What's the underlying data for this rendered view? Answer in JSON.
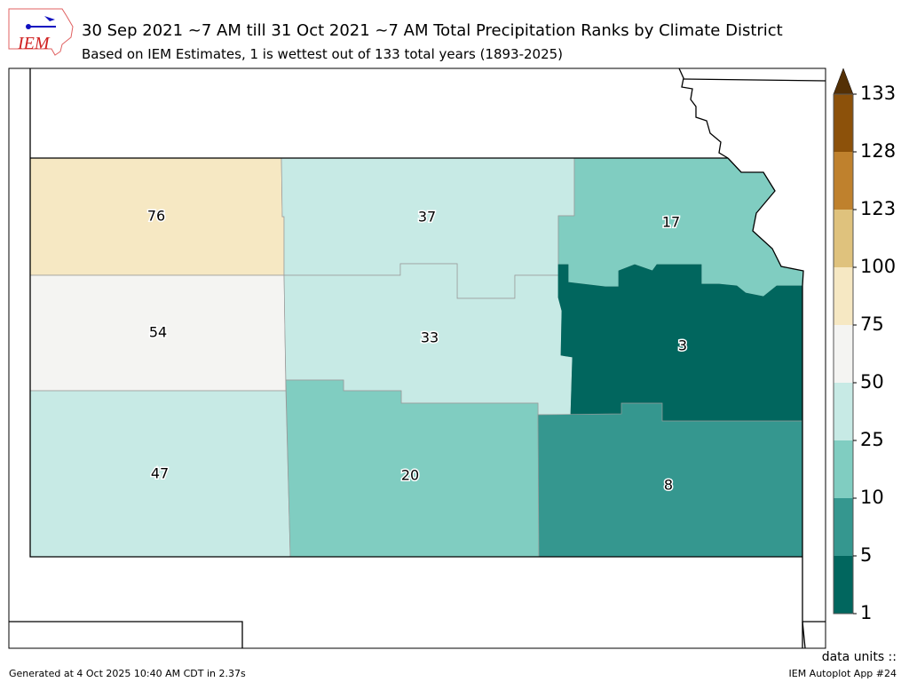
{
  "header": {
    "logo_text": "IEM",
    "title": "30 Sep 2021 ~7 AM till 31 Oct 2021 ~7 AM Total Precipitation Ranks by Climate District",
    "subtitle": "Based on IEM Estimates, 1 is wettest out of 133 total years (1893-2025)"
  },
  "districts": [
    {
      "id": "nw",
      "rank": "76",
      "color": "#f6e8c3"
    },
    {
      "id": "nc",
      "rank": "37",
      "color": "#c7eae5"
    },
    {
      "id": "ne",
      "rank": "17",
      "color": "#80cdc1"
    },
    {
      "id": "wc",
      "rank": "54",
      "color": "#f4f4f2"
    },
    {
      "id": "c",
      "rank": "33",
      "color": "#c7eae5"
    },
    {
      "id": "ec",
      "rank": "3",
      "color": "#01665e"
    },
    {
      "id": "sw",
      "rank": "47",
      "color": "#c7eae5"
    },
    {
      "id": "sc",
      "rank": "20",
      "color": "#80cdc1"
    },
    {
      "id": "se",
      "rank": "8",
      "color": "#35978f"
    }
  ],
  "colorbar": {
    "ticks": [
      "1",
      "5",
      "10",
      "25",
      "50",
      "75",
      "100",
      "123",
      "128",
      "133"
    ],
    "colors": [
      "#01665e",
      "#35978f",
      "#80cdc1",
      "#c7eae5",
      "#f4f4f2",
      "#f6e8c3",
      "#dfc27d",
      "#bf812d",
      "#8c510a"
    ],
    "extend_color": "#543005"
  },
  "footer": {
    "units": "data units ::",
    "generated": "Generated at 4 Oct 2025 10:40 AM CDT in 2.37s",
    "app": "IEM Autoplot App #24"
  }
}
